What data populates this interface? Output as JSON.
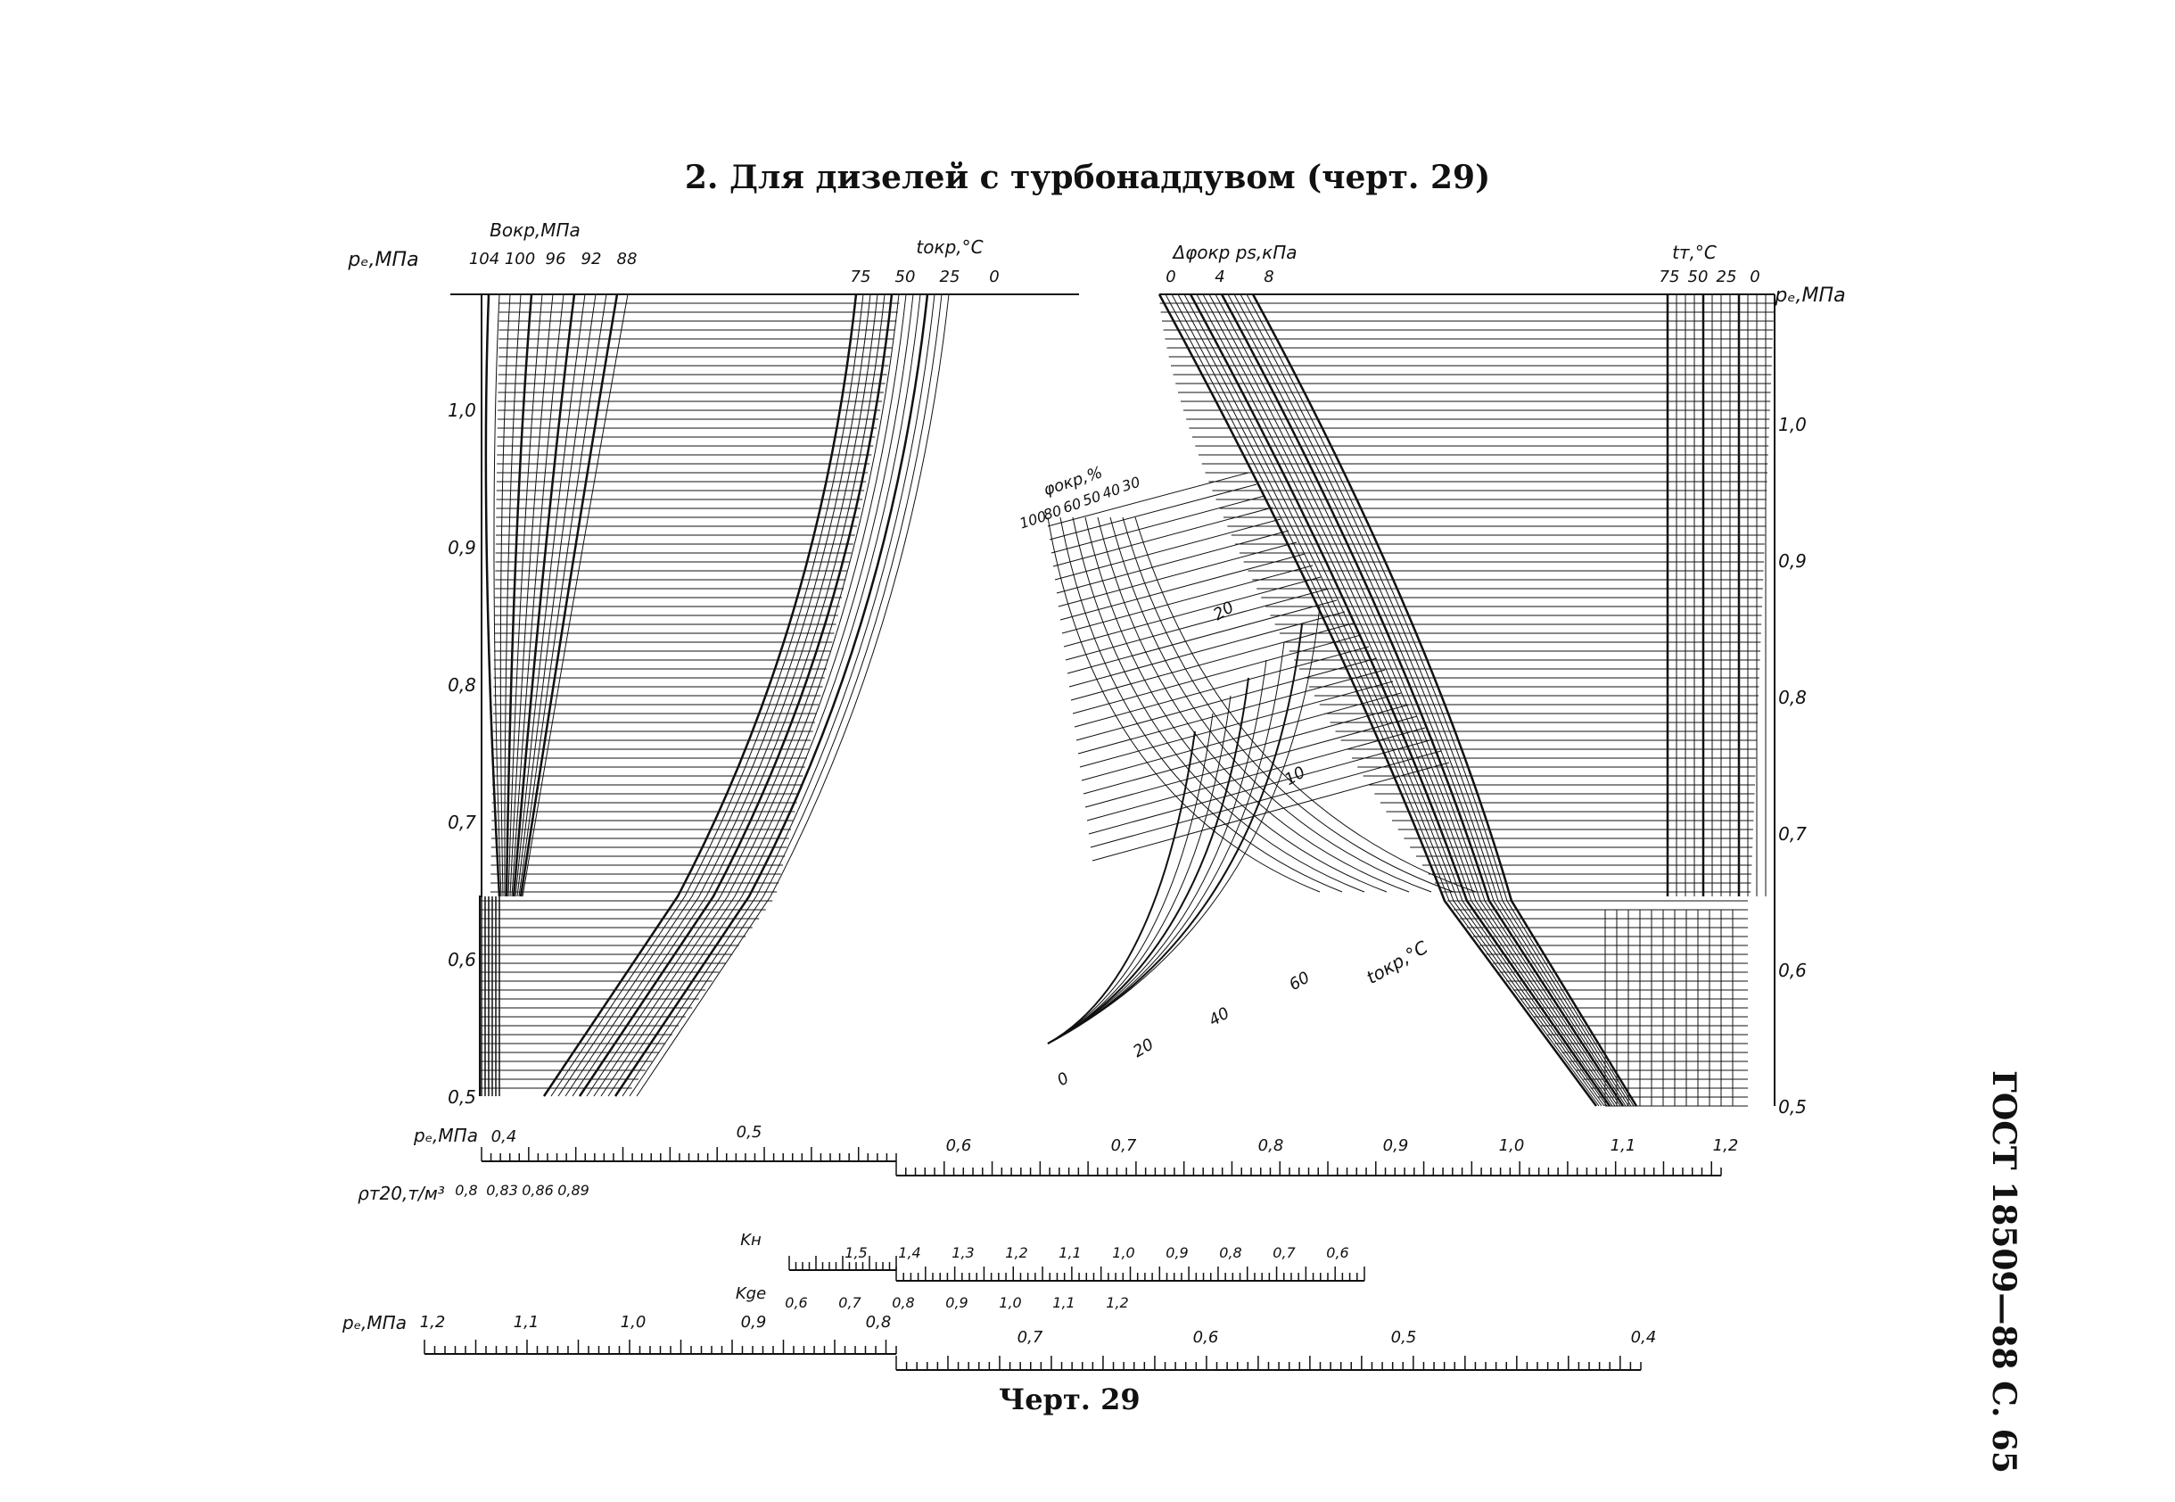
{
  "page": {
    "title": "2. Для дизелей с турбонаддувом (черт. 29)",
    "caption": "Черт. 29",
    "side_label": "ГОСТ 18509—88 С. 65"
  },
  "chart_data": {
    "type": "line",
    "subtype": "nomogram",
    "title": "2. Для дизелей с турбонаддувом (черт. 29)",
    "colors": {
      "ink": "#111111",
      "paper": "#ffffff"
    },
    "grid": true,
    "axes": {
      "pe_left": {
        "label": "pₑ,МПа",
        "ticks": [
          "1,0",
          "0,9",
          "0,8",
          "0,7",
          "0,6",
          "0,5"
        ],
        "range": [
          0.5,
          1.09
        ]
      },
      "pe_right": {
        "label": "pₑ,МПа",
        "ticks": [
          "1,0",
          "0,9",
          "0,8",
          "0,7",
          "0,6",
          "0,5"
        ],
        "range": [
          0.5,
          1.09
        ]
      },
      "B_okr": {
        "label": "Bокр,МПа",
        "ticks": [
          "104",
          "100",
          "96",
          "92",
          "88"
        ]
      },
      "t_okr_top": {
        "label": "tокр,°C",
        "ticks": [
          "75",
          "50",
          "25",
          "0"
        ]
      },
      "delta_phi": {
        "label": "Δφокр ps,кПа",
        "ticks": [
          "0",
          "4",
          "8"
        ]
      },
      "t_T": {
        "label": "tт,°C",
        "ticks": [
          "75",
          "50",
          "25",
          "0"
        ]
      },
      "phi_okr": {
        "label": "φокр,%",
        "ticks": [
          "100",
          "80",
          "60",
          "50",
          "40",
          "30"
        ]
      },
      "t_okr_inner": {
        "label": "tокр,°C",
        "ticks": [
          "0",
          "20",
          "40",
          "60"
        ]
      },
      "inner_curve_labels": [
        "20",
        "10"
      ],
      "pe_bottom": {
        "label": "pₑ,МПа",
        "ticks": [
          "0,4",
          "0,5",
          "0,6",
          "0,7",
          "0,8",
          "0,9",
          "1,0",
          "1,1",
          "1,2"
        ]
      },
      "rho_T20": {
        "label": "ρт20,т/м³",
        "ticks": [
          "0,8",
          "0,83",
          "0,86",
          "0,89"
        ]
      },
      "K_n": {
        "label": "Kн",
        "ticks": [
          "1,5",
          "1,4",
          "1,3",
          "1,2",
          "1,1",
          "1,0",
          "0,9",
          "0,8",
          "0,7",
          "0,6"
        ]
      },
      "K_ge": {
        "label": "Kgе",
        "ticks": [
          "0,6",
          "0,7",
          "0,8",
          "0,9",
          "1,0",
          "1,1",
          "1,2"
        ]
      },
      "pe_e": {
        "label": "pₑ,МПа",
        "ticks": [
          "1,2",
          "1,1",
          "1,0",
          "0,9",
          "0,8",
          "0,7",
          "0,6",
          "0,5",
          "0,4"
        ]
      }
    }
  }
}
